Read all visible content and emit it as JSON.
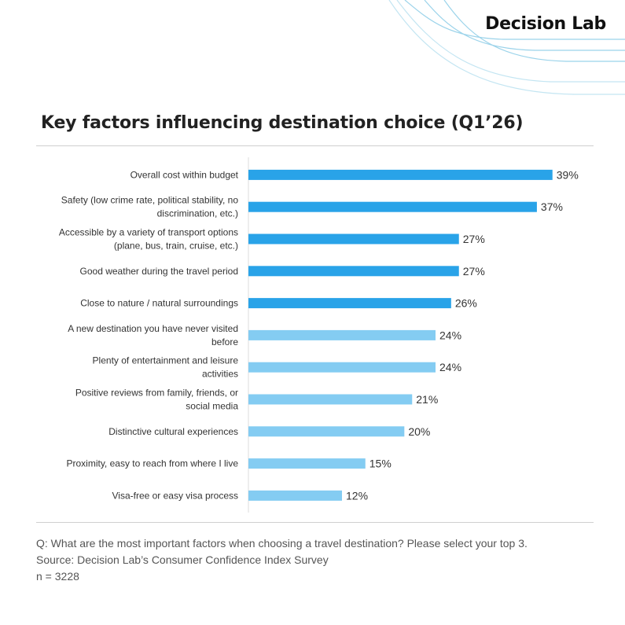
{
  "brand": {
    "name": "Decision Lab"
  },
  "title": "Key factors influencing destination choice (Q1’26)",
  "colors": {
    "top_bar": "#29a3e8",
    "other_bar": "#84ccf2",
    "axis": "#dedede",
    "deco_line": "#9bd3ea"
  },
  "chart_data": {
    "type": "bar",
    "orientation": "horizontal",
    "categories": [
      [
        "Overall cost within budget"
      ],
      [
        "Safety (low crime rate, political stability, no",
        "discrimination, etc.)"
      ],
      [
        "Accessible by a variety of transport options",
        "(plane, bus, train, cruise, etc.)"
      ],
      [
        "Good weather during the travel period"
      ],
      [
        "Close to nature / natural surroundings"
      ],
      [
        "A new destination you have never visited",
        "before"
      ],
      [
        "Plenty of entertainment and leisure",
        "activities"
      ],
      [
        "Positive reviews from family, friends, or",
        "social media"
      ],
      [
        "Distinctive cultural experiences"
      ],
      [
        "Proximity, easy to reach from where I live"
      ],
      [
        "Visa-free or easy visa process"
      ]
    ],
    "values": [
      39,
      37,
      27,
      27,
      26,
      24,
      24,
      21,
      20,
      15,
      12
    ],
    "value_labels": [
      "39%",
      "37%",
      "27%",
      "27%",
      "26%",
      "24%",
      "24%",
      "21%",
      "20%",
      "15%",
      "12%"
    ],
    "highlight_top_n": 5,
    "xlim": [
      0,
      48
    ],
    "grid": false,
    "legend": "none"
  },
  "footer": {
    "question": "Q: What are the most important factors when choosing a travel destination? Please select your top 3.",
    "source": "Source: Decision Lab’s Consumer Confidence Index Survey",
    "sample": "n = 3228"
  }
}
